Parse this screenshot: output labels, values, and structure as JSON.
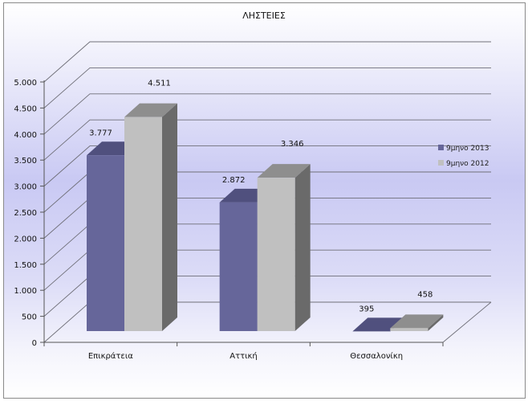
{
  "chart_data": {
    "type": "bar",
    "title": "ΛΗΣΤΕΙΕΣ",
    "categories": [
      "Επικράτεια",
      "Αττική",
      "Θεσσαλονίκη"
    ],
    "series": [
      {
        "name": "9μηνο 2013",
        "values": [
          3777,
          2872,
          395
        ],
        "labels": [
          "3.777",
          "2.872",
          "395"
        ],
        "color": "#66669a"
      },
      {
        "name": "9μηνο 2012",
        "values": [
          4511,
          3346,
          458
        ],
        "labels": [
          "4.511",
          "3.346",
          "458"
        ],
        "color": "#c0c0c0"
      }
    ],
    "xlabel": "",
    "ylabel": "",
    "ylim": [
      0,
      5000
    ],
    "yticks": [
      0,
      500,
      1000,
      1500,
      2000,
      2500,
      3000,
      3500,
      4000,
      4500,
      5000
    ],
    "ytick_labels": [
      "0",
      "500",
      "1.000",
      "1.500",
      "2.000",
      "2.500",
      "3.000",
      "3.500",
      "4.000",
      "4.500",
      "5.000"
    ],
    "grid": true,
    "style": "3d-column",
    "legend_position": "right"
  }
}
